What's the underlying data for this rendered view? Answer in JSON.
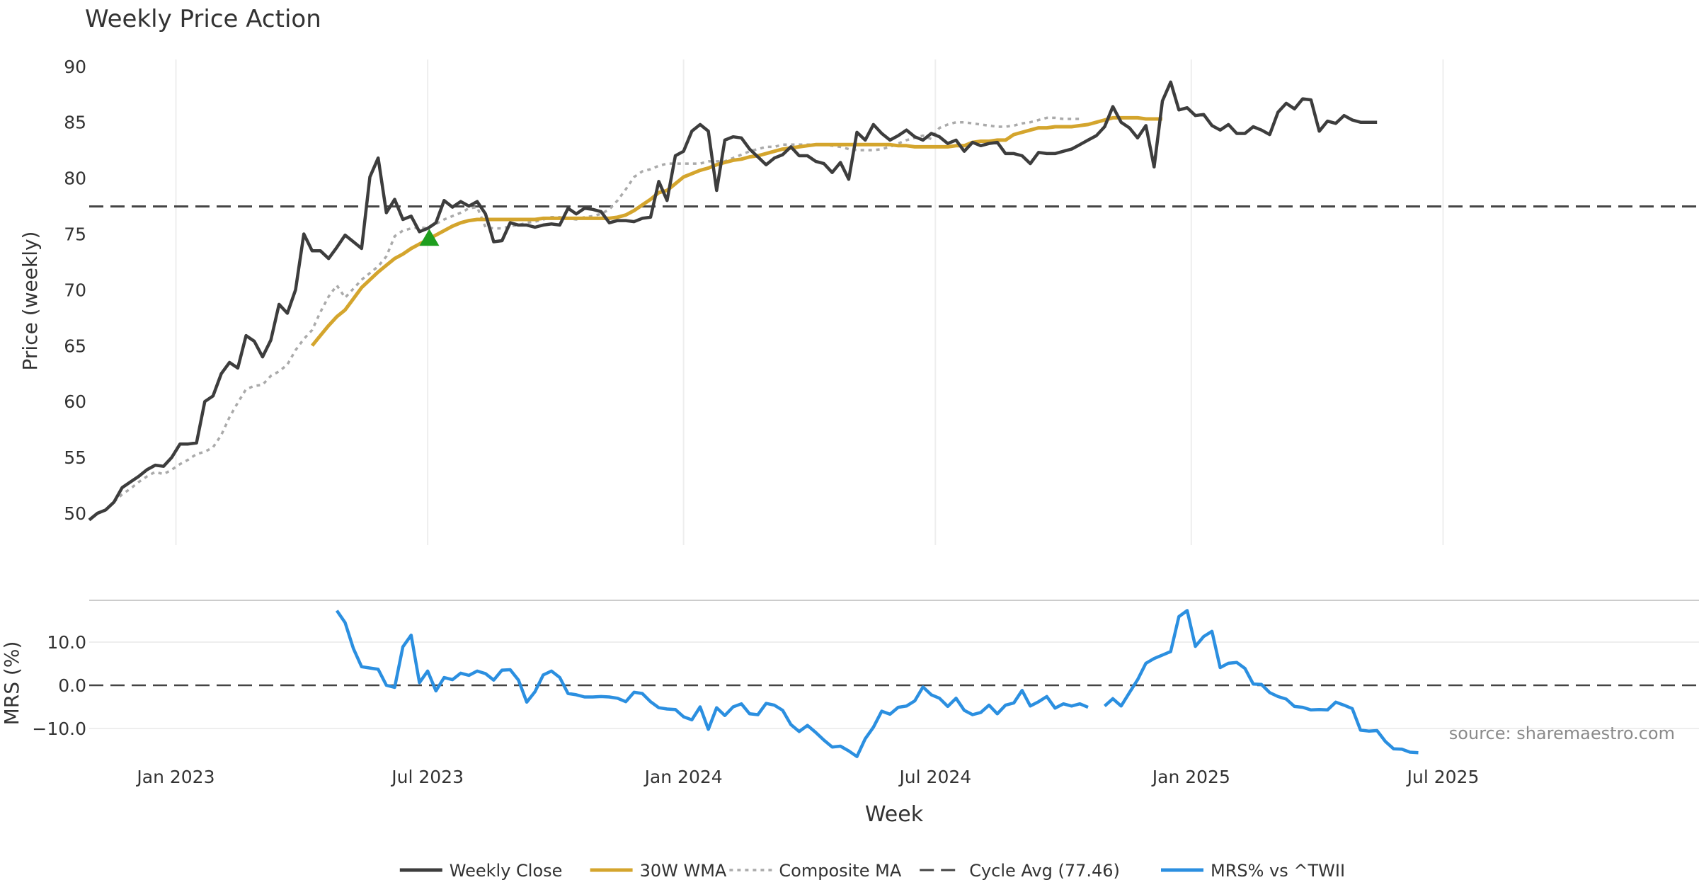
{
  "chart_data": [
    {
      "type": "line",
      "title": "Weekly Price Action",
      "xlabel": "",
      "ylabel": "Price (weekly)",
      "ylim": [
        47.5,
        91
      ],
      "yticks": [
        50,
        55,
        60,
        65,
        70,
        75,
        80,
        85,
        90
      ],
      "x_range_weeks": [
        0,
        195
      ],
      "x_gridlines_weeks": [
        10.5,
        41,
        72,
        102.5,
        133.5,
        164
      ],
      "cycle_avg": 77.46,
      "buy_signal": {
        "week": 41.2,
        "value": 74.7
      },
      "series": [
        {
          "name": "Weekly Close",
          "values": [
            49.4,
            50,
            50.3,
            51,
            52.3,
            52.8,
            53.3,
            53.9,
            54.3,
            54.2,
            55,
            56.2,
            56.2,
            56.3,
            60,
            60.5,
            62.5,
            63.5,
            63,
            65.9,
            65.4,
            64,
            65.5,
            68.7,
            67.9,
            70,
            75,
            73.5,
            73.5,
            72.8,
            73.8,
            74.9,
            74.3,
            73.7,
            80.1,
            81.8,
            76.9,
            78.1,
            76.3,
            76.6,
            75.2,
            75.5,
            76,
            78,
            77.4,
            77.9,
            77.5,
            77.9,
            76.8,
            74.3,
            74.4,
            76,
            75.8,
            75.8,
            75.6,
            75.8,
            75.9,
            75.8,
            77.3,
            76.8,
            77.3,
            77.2,
            77,
            76,
            76.2,
            76.2,
            76.1,
            76.4,
            76.5,
            79.7,
            78,
            82,
            82.4,
            84.2,
            84.8,
            84.2,
            78.9,
            83.4,
            83.7,
            83.6,
            82.6,
            81.9,
            81.2,
            81.8,
            82.1,
            82.8,
            82,
            82,
            81.5,
            81.3,
            80.5,
            81.4,
            79.9,
            84.1,
            83.4,
            84.8,
            84,
            83.4,
            83.8,
            84.3,
            83.7,
            83.4,
            84,
            83.7,
            83.1,
            83.4,
            82.4,
            83.2,
            82.9,
            83.1,
            83.2,
            82.2,
            82.2,
            82,
            81.3,
            82.3,
            82.2,
            82.2,
            82.4,
            82.6,
            83,
            83.4,
            83.8,
            84.6,
            86.4,
            85,
            84.5,
            83.6,
            84.7,
            81,
            86.9,
            88.6,
            86.1,
            86.3,
            85.6,
            85.7,
            84.7,
            84.3,
            84.8,
            84,
            84,
            84.6,
            84.3,
            83.9,
            85.9,
            86.7,
            86.2,
            87.1,
            87,
            84.2,
            85.1,
            84.9,
            85.6,
            85.2,
            85,
            85,
            85
          ]
        },
        {
          "name": "30W WMA",
          "values": [
            65,
            65.9,
            66.8,
            67.6,
            68.2,
            69.2,
            70.2,
            70.9,
            71.6,
            72.2,
            72.8,
            73.2,
            73.7,
            74.1,
            74.5,
            74.9,
            75.3,
            75.7,
            76,
            76.2,
            76.3,
            76.3,
            76.3,
            76.3,
            76.3,
            76.3,
            76.3,
            76.3,
            76.4,
            76.4,
            76.4,
            76.4,
            76.4,
            76.4,
            76.4,
            76.4,
            76.4,
            76.5,
            76.7,
            77.1,
            77.6,
            78.1,
            78.7,
            78.9,
            79.5,
            80.1,
            80.4,
            80.7,
            80.9,
            81.2,
            81.4,
            81.6,
            81.7,
            81.9,
            82,
            82.2,
            82.4,
            82.6,
            82.7,
            82.8,
            82.9,
            83,
            83,
            83,
            83,
            83,
            83,
            83,
            83,
            83,
            83,
            82.9,
            82.9,
            82.8,
            82.8,
            82.8,
            82.8,
            82.8,
            82.9,
            82.9,
            83.2,
            83.3,
            83.3,
            83.4,
            83.4,
            83.9,
            84.1,
            84.3,
            84.5,
            84.5,
            84.6,
            84.6,
            84.6,
            84.7,
            84.8,
            85,
            85.2,
            85.4,
            85.4,
            85.4,
            85.4,
            85.3,
            85.3,
            85.3
          ]
        },
        {
          "name": "Composite MA",
          "values": [
            51,
            51.7,
            52.2,
            52.8,
            53.3,
            53.7,
            53.5,
            53.9,
            54.4,
            54.8,
            55.3,
            55.5,
            55.9,
            57,
            58.6,
            59.9,
            61.1,
            61.4,
            61.5,
            62.3,
            62.7,
            63.3,
            64.6,
            65.6,
            66.4,
            68,
            69.4,
            70.4,
            69.3,
            70.1,
            70.9,
            71.5,
            72.1,
            73,
            74.8,
            75.3,
            75.5,
            75.6,
            75.5,
            75.9,
            76.3,
            76.6,
            76.9,
            77.3,
            77.4,
            75.6,
            75.5,
            75.5,
            75.7,
            75.8,
            76,
            76.1,
            76.3,
            76.5,
            76.5,
            76.4,
            76.3,
            76.5,
            76.6,
            76.8,
            77.2,
            78,
            79,
            80.1,
            80.6,
            80.8,
            81.1,
            81.3,
            81.3,
            81.3,
            81.3,
            81.3,
            81.5,
            81.5,
            81.5,
            81.8,
            82.1,
            82.4,
            82.6,
            82.8,
            82.8,
            83,
            83,
            83,
            83,
            83,
            83,
            82.9,
            82.8,
            82.6,
            82.5,
            82.5,
            82.5,
            82.6,
            82.8,
            83.1,
            83.4,
            83.6,
            83.8,
            83.5,
            84.5,
            84.8,
            85,
            85,
            84.9,
            84.8,
            84.7,
            84.6,
            84.6,
            84.7,
            84.9,
            85,
            85.2,
            85.4,
            85.4,
            85.3,
            85.3,
            85.3
          ]
        },
        {
          "name": "Cycle Avg (77.46)",
          "values": [
            77.46
          ]
        }
      ]
    },
    {
      "type": "line",
      "title": "",
      "xlabel": "Week",
      "ylabel": "MRS (%)",
      "ylim": [
        -16,
        20
      ],
      "yticks": [
        10,
        0,
        -10
      ],
      "yticklabels": [
        "10.0",
        "0.0",
        "−10.0"
      ],
      "x_tick_labels": [
        "Jan 2023",
        "Jul 2023",
        "Jan 2024",
        "Jul 2024",
        "Jan 2025",
        "Jul 2025"
      ],
      "series": [
        {
          "name": "MRS% vs ^TWII",
          "values": [
            17.3,
            14.5,
            8.5,
            4.3,
            4,
            3.7,
            0,
            -0.5,
            8.9,
            11.6,
            0.6,
            3.3,
            -1.3,
            1.8,
            1.3,
            2.8,
            2.3,
            3.3,
            2.7,
            1.2,
            3.5,
            3.6,
            1.2,
            -3.9,
            -1.5,
            2.4,
            3.3,
            1.8,
            -1.9,
            -2.2,
            -2.7,
            -2.7,
            -2.6,
            -2.7,
            -3,
            -3.8,
            -1.6,
            -1.9,
            -3.8,
            -5.2,
            -5.5,
            -5.6,
            -7.3,
            -8,
            -5,
            -10.2,
            -5.2,
            -7,
            -5,
            -4.3,
            -6.6,
            -6.8,
            -4.2,
            -4.6,
            -5.8,
            -9.1,
            -10.7,
            -9.3,
            -10.9,
            -12.7,
            -14.3,
            -14.1,
            -15.2,
            -16.5,
            -12.4,
            -9.7,
            -6,
            -6.7,
            -5.1,
            -4.8,
            -3.6,
            -0.4,
            -2.2,
            -3,
            -4.9,
            -3,
            -5.8,
            -6.8,
            -6.3,
            -4.6,
            -6.6,
            -4.6,
            -4.1,
            -1.2,
            -4.8,
            -3.8,
            -2.6,
            -5.3,
            -4.3,
            -4.8,
            -4.3,
            -5.1,
            null,
            -4.8,
            -3.1,
            -4.8,
            -1.7,
            1.3,
            5.1,
            6.2,
            7,
            7.8,
            15.9,
            17.3,
            9,
            11.3,
            12.5,
            4.1,
            5.1,
            5.3,
            3.9,
            0.3,
            0.2,
            -1.7,
            -2.6,
            -3.2,
            -4.9,
            -5.1,
            -5.7,
            -5.6,
            -5.7,
            -3.9,
            -4.6,
            -5.4,
            -10.4,
            -10.6,
            -10.5,
            -13,
            -14.7,
            -14.8,
            -15.5,
            -15.6
          ]
        }
      ]
    }
  ],
  "legend": {
    "items": [
      {
        "label": "Weekly Close",
        "color": "#3d3d3d",
        "style": "solid"
      },
      {
        "label": "30W WMA",
        "color": "#d4a52d",
        "style": "solid"
      },
      {
        "label": "Composite MA",
        "color": "#aaaaaa",
        "style": "dotted"
      },
      {
        "label": "Cycle Avg (77.46)",
        "color": "#444444",
        "style": "dashed"
      },
      {
        "label": "MRS% vs ^TWII",
        "color": "#2b8fe0",
        "style": "solid"
      }
    ]
  },
  "source_text": "source: sharemaestro.com",
  "colors": {
    "close": "#3d3d3d",
    "wma": "#d4a52d",
    "composite": "#aaaaaa",
    "cycle": "#444444",
    "mrs": "#2b8fe0",
    "signal": "#1e9e1e",
    "grid": "#eeeeee"
  }
}
